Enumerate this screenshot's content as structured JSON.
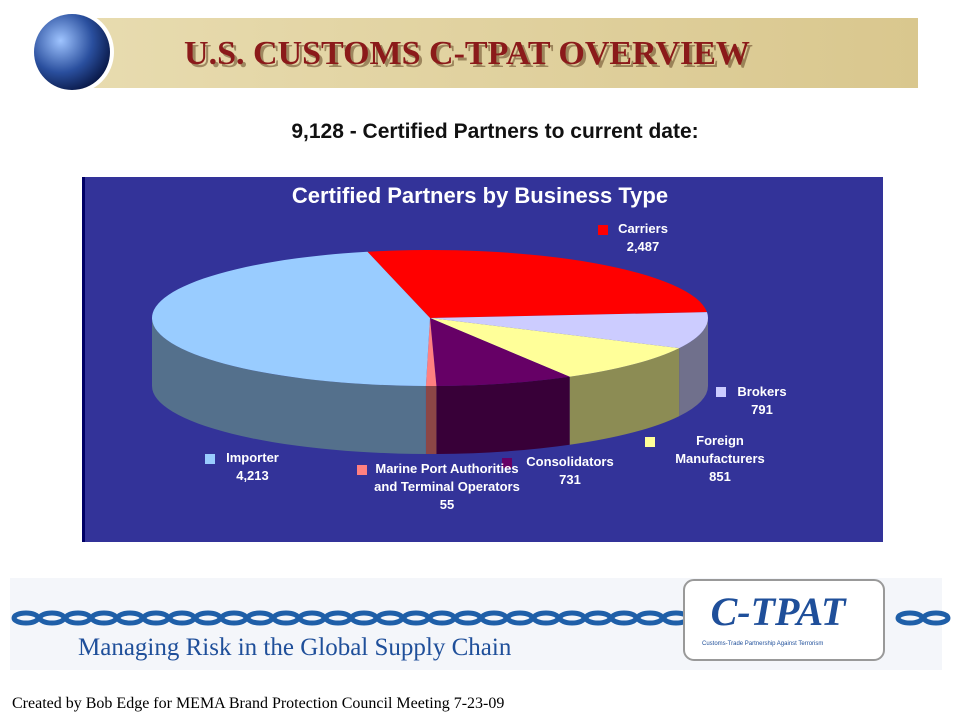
{
  "header": {
    "title": "U.S. CUSTOMS C-TPAT OVERVIEW"
  },
  "subtitle": "9,128 - Certified Partners to current date:",
  "chart_data": {
    "type": "pie",
    "title": "Certified Partners by Business Type",
    "categories": [
      "Carriers",
      "Brokers",
      "Foreign Manufacturers",
      "Consolidators",
      "Marine Port Authorities and Terminal Operators",
      "Importer"
    ],
    "values": [
      2487,
      791,
      851,
      731,
      55,
      4213
    ],
    "value_labels": [
      "2,487",
      "791",
      "851",
      "731",
      "55",
      "4,213"
    ],
    "colors": [
      "#ff0000",
      "#ccccff",
      "#ffff99",
      "#660066",
      "#ff8080",
      "#99ccff"
    ]
  },
  "banner": {
    "tagline": "Managing Risk in the Global Supply Chain",
    "logo_text": "C-TPAT",
    "logo_subtitle": "Customs-Trade Partnership Against Terrorism"
  },
  "footer": "Created by Bob Edge for MEMA Brand Protection Council Meeting 7-23-09"
}
